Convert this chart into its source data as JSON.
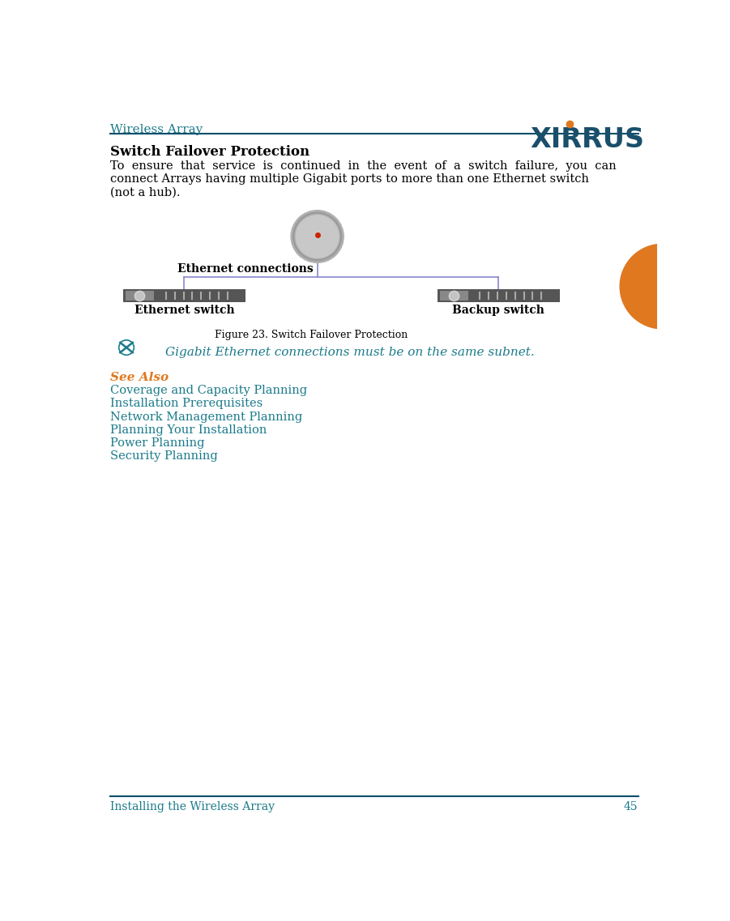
{
  "header_text": "Wireless Array",
  "header_color": "#1a7a8a",
  "header_line_color": "#0d4f6b",
  "logo_text": "XIRRUS",
  "logo_color": "#1a4f6b",
  "logo_dot_color": "#e07820",
  "title_text": "Switch Failover Protection",
  "body_color": "#000000",
  "eth_conn_label": "Ethernet connections",
  "eth_switch_label": "Ethernet switch",
  "backup_switch_label": "Backup switch",
  "figure_caption": "Figure 23. Switch Failover Protection",
  "note_text": "Gigabit Ethernet connections must be on the same subnet.",
  "note_color": "#1a7a8a",
  "see_also_label": "See Also",
  "see_also_color": "#e07820",
  "links": [
    "Coverage and Capacity Planning",
    "Installation Prerequisites",
    "Network Management Planning",
    "Planning Your Installation",
    "Power Planning",
    "Security Planning"
  ],
  "link_color": "#1a7a8a",
  "footer_text": "Installing the Wireless Array",
  "footer_number": "45",
  "footer_color": "#1a7a8a",
  "switch_color": "#555555",
  "line_color": "#8888cc",
  "orange_circle_color": "#e07820",
  "bg_color": "#ffffff",
  "body_lines": [
    "To  ensure  that  service  is  continued  in  the  event  of  a  switch  failure,  you  can",
    "connect Arrays having multiple Gigabit ports to more than one Ethernet switch",
    "(not a hub)."
  ]
}
